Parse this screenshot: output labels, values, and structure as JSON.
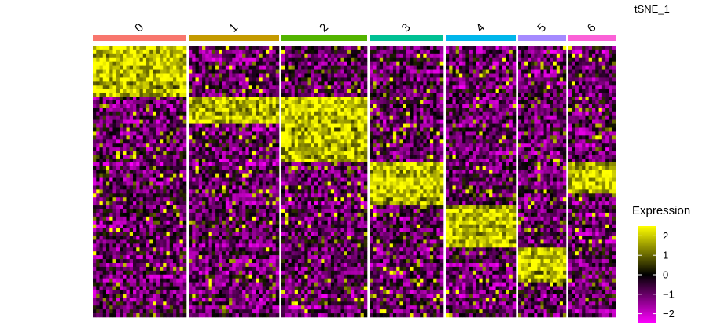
{
  "chart_data": {
    "type": "heatmap",
    "title": "tSNE_1",
    "clusters": [
      {
        "label": "0",
        "color": "#f8766d",
        "cells": 120
      },
      {
        "label": "1",
        "color": "#c49a00",
        "cells": 115
      },
      {
        "label": "2",
        "color": "#53b400",
        "cells": 108
      },
      {
        "label": "3",
        "color": "#00c094",
        "cells": 93
      },
      {
        "label": "4",
        "color": "#00b6eb",
        "cells": 89
      },
      {
        "label": "5",
        "color": "#a58aff",
        "cells": 60
      },
      {
        "label": "6",
        "color": "#fb61d7",
        "cells": 58
      }
    ],
    "marker_blocks": [
      {
        "cluster": "0",
        "gene_fraction_start": 0.0,
        "gene_fraction_end": 0.18
      },
      {
        "cluster": "1",
        "gene_fraction_start": 0.18,
        "gene_fraction_end": 0.28
      },
      {
        "cluster": "2",
        "gene_fraction_start": 0.18,
        "gene_fraction_end": 0.43
      },
      {
        "cluster": "3",
        "gene_fraction_start": 0.43,
        "gene_fraction_end": 0.59
      },
      {
        "cluster": "4",
        "gene_fraction_start": 0.59,
        "gene_fraction_end": 0.75
      },
      {
        "cluster": "5",
        "gene_fraction_start": 0.75,
        "gene_fraction_end": 0.87
      },
      {
        "cluster": "6",
        "gene_fraction_start": 0.43,
        "gene_fraction_end": 0.55
      }
    ],
    "n_genes": 70,
    "legend": {
      "title": "Expression",
      "ticks": [
        2,
        1,
        0,
        -1,
        -2
      ],
      "colors": [
        "#ff00ff",
        "#000000",
        "#ffff00"
      ],
      "range": [
        -2.5,
        2.5
      ]
    }
  }
}
